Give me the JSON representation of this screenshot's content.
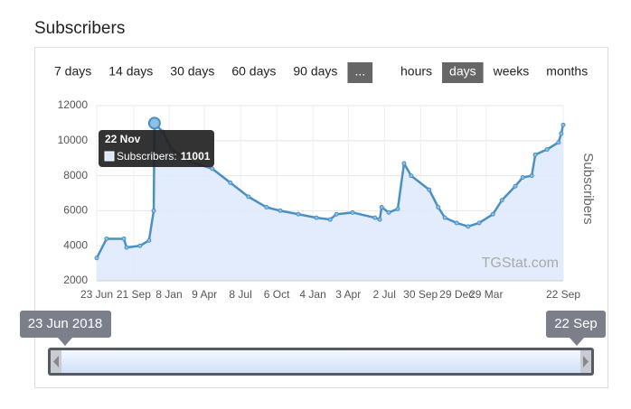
{
  "page": {
    "title": "Subscribers",
    "range_buttons": [
      {
        "label": "7 days"
      },
      {
        "label": "14 days"
      },
      {
        "label": "30 days"
      },
      {
        "label": "60 days"
      },
      {
        "label": "90 days"
      },
      {
        "label": "...",
        "selected": true
      }
    ],
    "period_buttons": [
      {
        "label": "hours"
      },
      {
        "label": "days",
        "selected": true
      },
      {
        "label": "weeks"
      },
      {
        "label": "months"
      }
    ],
    "navigator": {
      "from": "23 Jun 2018",
      "to": "22 Sep"
    }
  },
  "chart_data": {
    "type": "area",
    "y_label": "Subscribers",
    "watermark": "TGStat.com",
    "tooltip": {
      "title": "22 Nov",
      "text": "Subscribers:",
      "point": 7
    },
    "xlim": [
      0,
      1187
    ],
    "ylim": [
      2000,
      12000
    ],
    "xticks": [
      {
        "value": 0,
        "label": "23 Jun"
      },
      {
        "value": 94,
        "label": "21 Sep"
      },
      {
        "value": 184,
        "label": "8 Jan"
      },
      {
        "value": 274,
        "label": "9 Apr"
      },
      {
        "value": 366,
        "label": "8 Jul"
      },
      {
        "value": 458,
        "label": "6 Oct"
      },
      {
        "value": 550,
        "label": "4 Jan"
      },
      {
        "value": 640,
        "label": "3 Apr"
      },
      {
        "value": 732,
        "label": "2 Jul"
      },
      {
        "value": 824,
        "label": "30 Sep"
      },
      {
        "value": 916,
        "label": "29 Dec"
      },
      {
        "value": 991,
        "label": "29 Mar"
      },
      {
        "value": 1187,
        "label": "22 Sep"
      }
    ],
    "yticks": [
      2000,
      4000,
      6000,
      8000,
      10000,
      12000
    ],
    "grid": true,
    "series": [
      {
        "name": "Subscribers",
        "color": "#4a90c2",
        "fill": "#dde9fb",
        "x": [
          0,
          25,
          69,
          76,
          110,
          133,
          145,
          147,
          168,
          191,
          237,
          294,
          340,
          386,
          432,
          467,
          513,
          559,
          594,
          610,
          651,
          708,
          720,
          725,
          743,
          766,
          782,
          800,
          846,
          869,
          886,
          916,
          945,
          973,
          1008,
          1031,
          1065,
          1084,
          1107,
          1116,
          1146,
          1175,
          1182,
          1187
        ],
        "values": [
          3300,
          4400,
          4400,
          3900,
          4000,
          4300,
          6000,
          11001,
          10500,
          9500,
          8800,
          8400,
          7600,
          6800,
          6200,
          6000,
          5800,
          5600,
          5500,
          5800,
          5900,
          5600,
          5500,
          6200,
          5900,
          6100,
          8700,
          8000,
          7200,
          6200,
          5600,
          5300,
          5100,
          5300,
          5800,
          6600,
          7400,
          7900,
          8000,
          9200,
          9500,
          9900,
          10400,
          10900
        ]
      }
    ]
  }
}
